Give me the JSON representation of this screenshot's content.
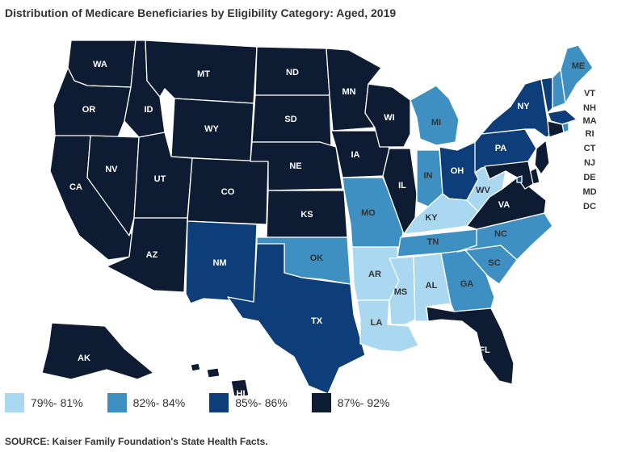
{
  "title": "Distribution of Medicare Beneficiaries by Eligibility Category: Aged, 2019",
  "source": "SOURCE: Kaiser Family Foundation's State Health Facts.",
  "legend": [
    {
      "label": "79%- 81%",
      "color": "#a9d8f0"
    },
    {
      "label": "82%- 84%",
      "color": "#3e90c3"
    },
    {
      "label": "85%- 86%",
      "color": "#0e3e79"
    },
    {
      "label": "87%- 92%",
      "color": "#0d1b33"
    }
  ],
  "chart_data": {
    "type": "choropleth",
    "title": "Distribution of Medicare Beneficiaries by Eligibility Category: Aged, 2019",
    "categories": [
      "79%- 81%",
      "82%- 84%",
      "85%- 86%",
      "87%- 92%"
    ],
    "states": {
      "WA": 3,
      "OR": 3,
      "CA": 3,
      "NV": 3,
      "ID": 3,
      "MT": 3,
      "WY": 3,
      "UT": 3,
      "AZ": 3,
      "CO": 3,
      "NM": 2,
      "ND": 3,
      "SD": 3,
      "NE": 3,
      "KS": 3,
      "OK": 1,
      "TX": 2,
      "MN": 3,
      "IA": 3,
      "MO": 1,
      "AR": 0,
      "LA": 0,
      "WI": 3,
      "IL": 3,
      "MI": 1,
      "IN": 1,
      "OH": 2,
      "KY": 0,
      "TN": 1,
      "MS": 0,
      "AL": 0,
      "GA": 1,
      "FL": 3,
      "SC": 1,
      "NC": 1,
      "VA": 3,
      "WV": 0,
      "PA": 2,
      "NY": 2,
      "VT": 2,
      "NH": 1,
      "ME": 1,
      "MA": 2,
      "RI": 1,
      "CT": 3,
      "NJ": 3,
      "DE": 3,
      "MD": 3,
      "DC": 2,
      "AK": 3,
      "HI": 3
    },
    "labels": [
      "WA",
      "OR",
      "CA",
      "NV",
      "ID",
      "MT",
      "WY",
      "UT",
      "AZ",
      "CO",
      "NM",
      "ND",
      "SD",
      "NE",
      "KS",
      "OK",
      "TX",
      "MN",
      "IA",
      "MO",
      "AR",
      "LA",
      "WI",
      "IL",
      "MI",
      "IN",
      "OH",
      "KY",
      "TN",
      "MS",
      "AL",
      "GA",
      "FL",
      "SC",
      "NC",
      "VA",
      "WV",
      "PA",
      "NY",
      "VT",
      "NH",
      "ME",
      "MA",
      "RI",
      "CT",
      "NJ",
      "DE",
      "MD",
      "DC",
      "AK",
      "HI"
    ]
  }
}
